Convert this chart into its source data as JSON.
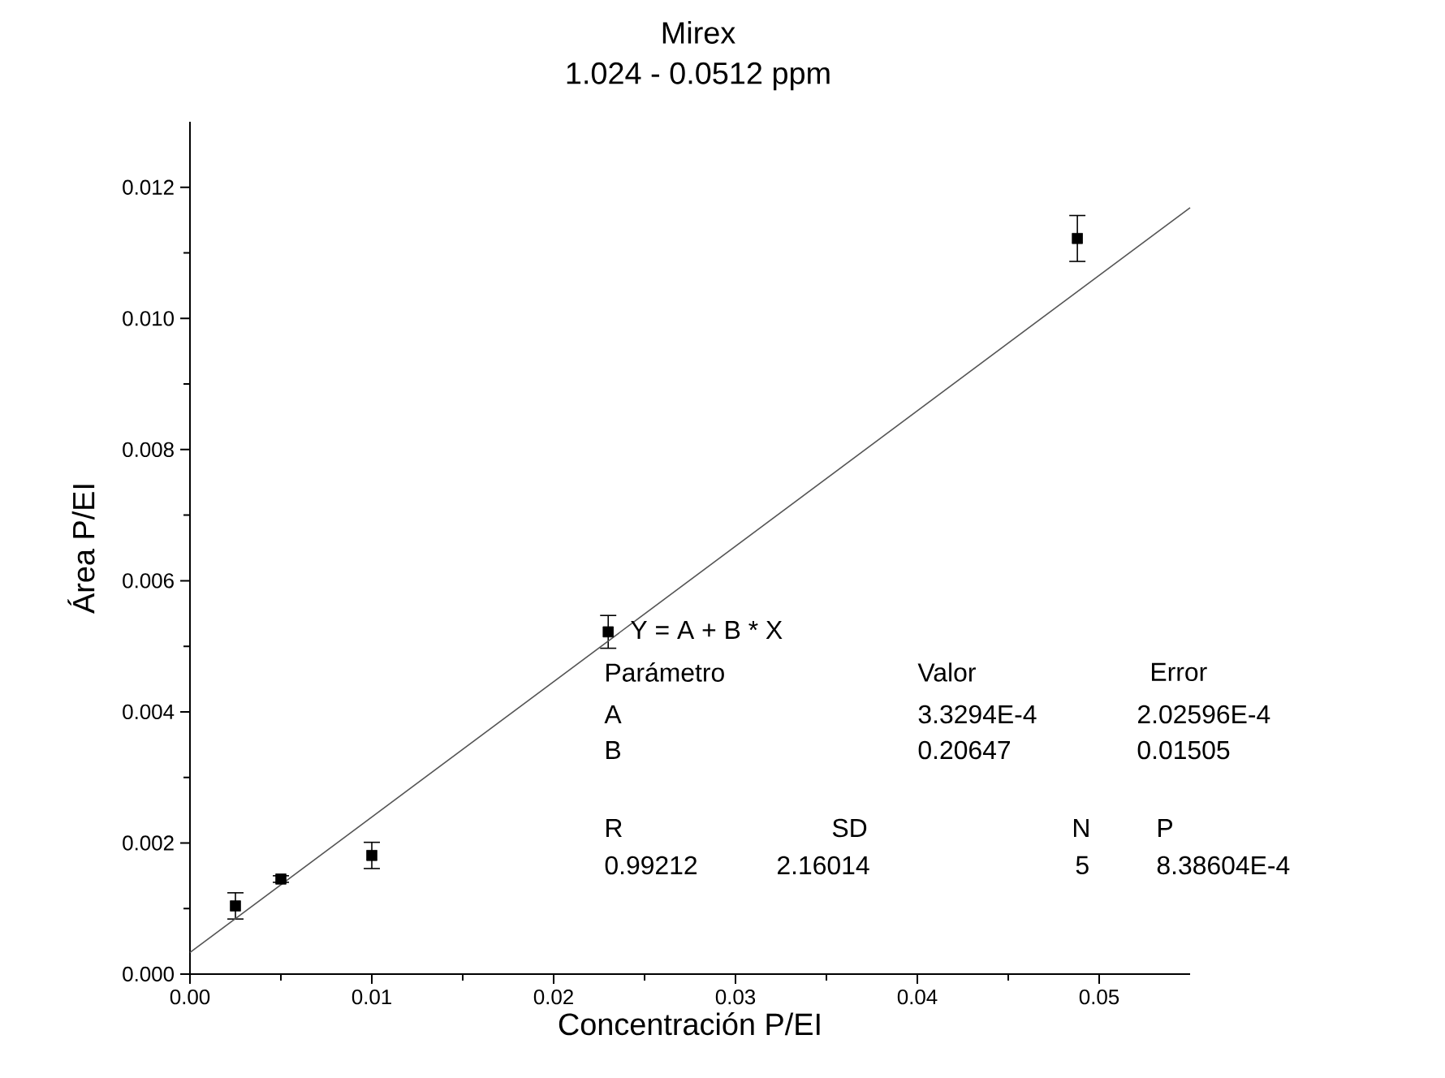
{
  "chart_data": {
    "type": "scatter",
    "title": "Mirex",
    "subtitle": "1.024 - 0.0512 ppm",
    "xlabel": "Concentración P/EI",
    "ylabel": "Área P/EI",
    "xlim": [
      0,
      0.055
    ],
    "ylim": [
      0,
      0.013
    ],
    "xticks": [
      {
        "value": 0,
        "label": "0.00"
      },
      {
        "value": 0.01,
        "label": "0.01"
      },
      {
        "value": 0.02,
        "label": "0.02"
      },
      {
        "value": 0.03,
        "label": "0.03"
      },
      {
        "value": 0.04,
        "label": "0.04"
      },
      {
        "value": 0.05,
        "label": "0.05"
      }
    ],
    "yticks": [
      {
        "value": 0,
        "label": "0.000"
      },
      {
        "value": 0.002,
        "label": "0.002"
      },
      {
        "value": 0.004,
        "label": "0.004"
      },
      {
        "value": 0.006,
        "label": "0.006"
      },
      {
        "value": 0.008,
        "label": "0.008"
      },
      {
        "value": 0.01,
        "label": "0.010"
      },
      {
        "value": 0.012,
        "label": "0.012"
      }
    ],
    "grid": false,
    "series": [
      {
        "type": "scatter",
        "marker": "square",
        "color": "#000000",
        "x": [
          0.0025,
          0.005,
          0.01,
          0.023,
          0.0488
        ],
        "values": [
          0.00104,
          0.00145,
          0.00181,
          0.00522,
          0.01122
        ],
        "errors": [
          0.0002,
          5e-05,
          0.0002,
          0.00025,
          0.00035
        ]
      },
      {
        "type": "line",
        "marker": "none",
        "color": "#555555",
        "x": [
          0,
          0.055
        ],
        "values": [
          0.00033,
          0.01169
        ]
      }
    ],
    "annotations": [
      "Y = A + B * X",
      "Parámetro",
      "Valor",
      "Error",
      "A",
      "3.3294E-4",
      "2.02596E-4",
      "B",
      "0.20647",
      "0.01505",
      "R",
      "SD",
      "N",
      "P",
      "0.99212",
      "2.16014",
      "5",
      "8.38604E-4"
    ]
  }
}
